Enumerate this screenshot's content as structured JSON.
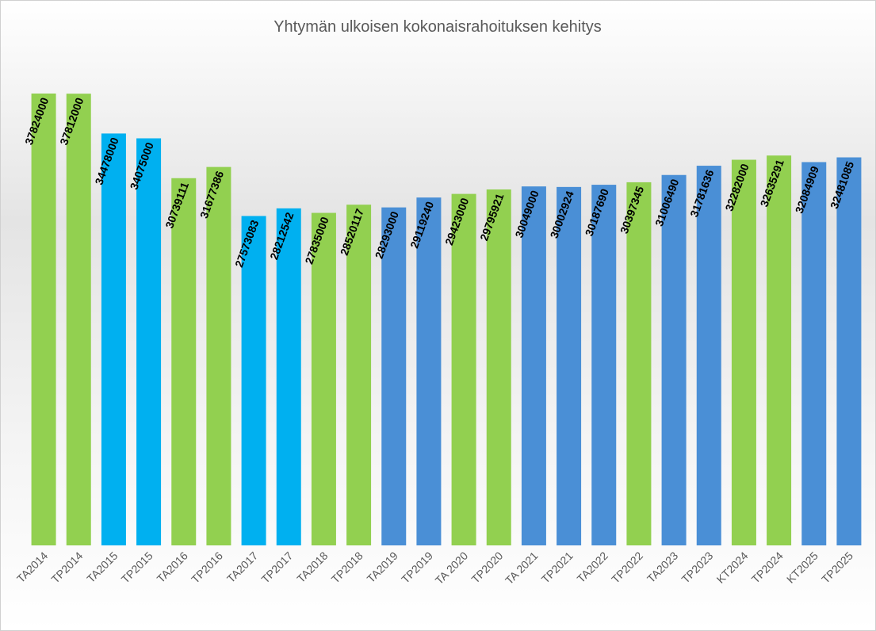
{
  "chart_data": {
    "type": "bar",
    "title": "Yhtymän ulkoisen kokonaisrahoituksen kehitys",
    "categories": [
      "TA2014",
      "TP2014",
      "TA2015",
      "TP2015",
      "TA2016",
      "TP2016",
      "TA2017",
      "TP2017",
      "TA2018",
      "TP2018",
      "TA2019",
      "TP2019",
      "TA 2020",
      "TP2020",
      "TA 2021",
      "TP2021",
      "TA2022",
      "TP2022",
      "TA2023",
      "TP2023",
      "KT2024",
      "TP2024",
      "KT2025",
      "TP2025"
    ],
    "values": [
      37824000,
      37812000,
      34478000,
      34075000,
      30739111,
      31677386,
      27573083,
      28212542,
      27835000,
      28520117,
      28293000,
      29119240,
      29423000,
      29795921,
      30049000,
      30002924,
      30187690,
      30397345,
      31006490,
      31781636,
      32282000,
      32635291,
      32084909,
      32481085
    ],
    "colors": [
      "#92d050",
      "#92d050",
      "#00b0f0",
      "#00b0f0",
      "#92d050",
      "#92d050",
      "#00b0f0",
      "#00b0f0",
      "#92d050",
      "#92d050",
      "#4a8fd6",
      "#4a8fd6",
      "#92d050",
      "#92d050",
      "#4a8fd6",
      "#4a8fd6",
      "#4a8fd6",
      "#92d050",
      "#4a8fd6",
      "#4a8fd6",
      "#92d050",
      "#92d050",
      "#4a8fd6",
      "#4a8fd6"
    ]
  }
}
